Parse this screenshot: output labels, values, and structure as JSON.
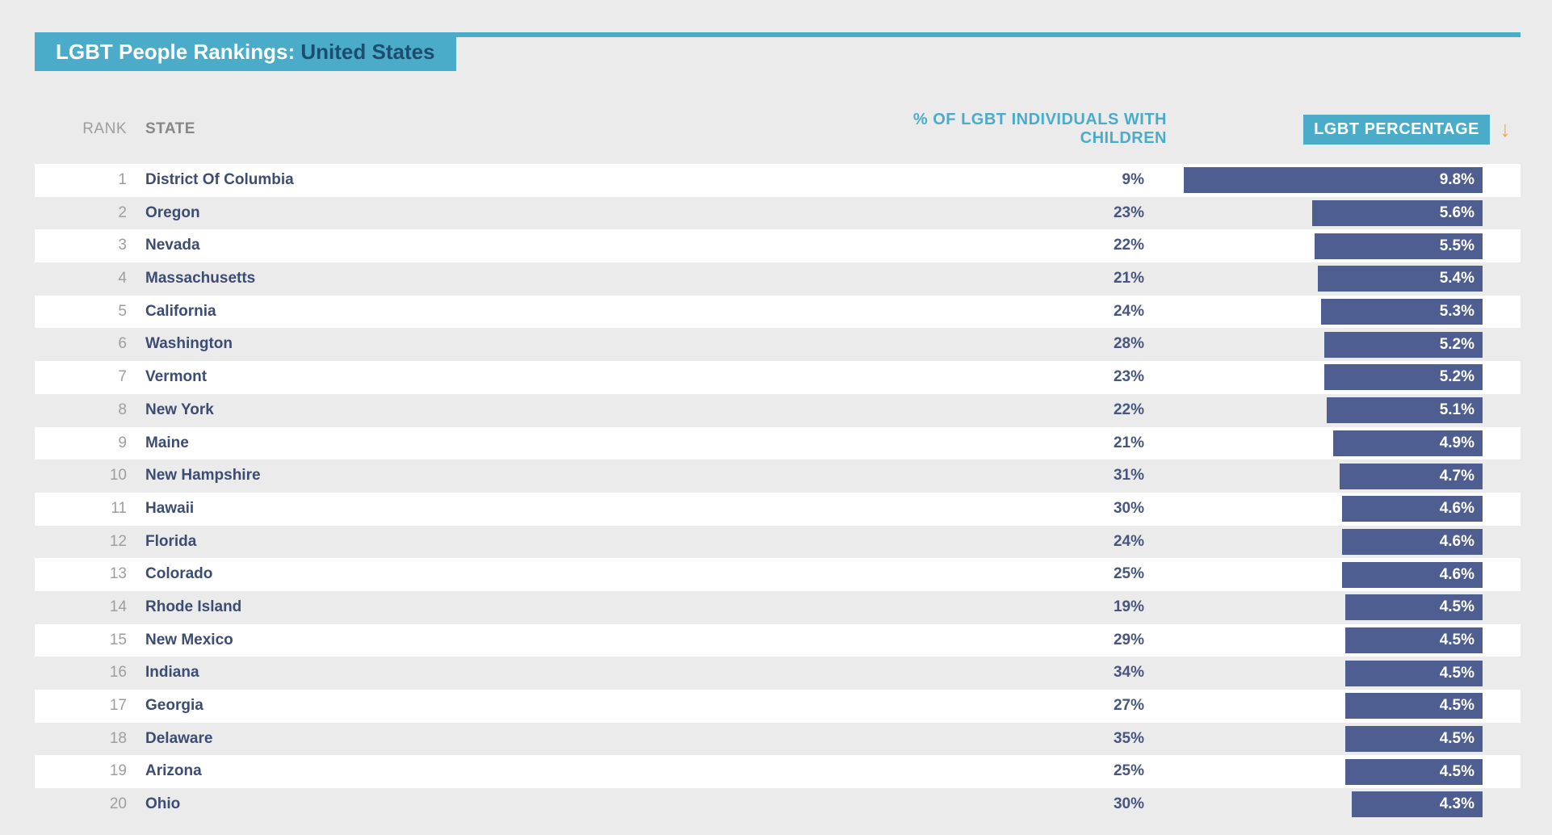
{
  "page": {
    "title_prefix": "LGBT People Rankings: ",
    "title_highlight": "United States"
  },
  "header": {
    "rank": "RANK",
    "state": "STATE",
    "children": "% OF LGBT INDIVIDUALS WITH CHILDREN",
    "percentage": "LGBT PERCENTAGE",
    "sort_icon": "↓"
  },
  "colors": {
    "accent_teal": "#4bacc9",
    "bar_navy": "#4e5e91",
    "state_text": "#3c4c72",
    "value_text": "#47567e",
    "muted_gray": "#9e9e9e",
    "header_gray": "#878787",
    "title_highlight_navy": "#1d4d6e",
    "sort_arrow_orange": "#efa851",
    "page_bg": "#ebebeb",
    "row_white": "#ffffff"
  },
  "chart_data": {
    "type": "bar",
    "title": "LGBT People Rankings: United States",
    "columns": [
      "RANK",
      "STATE",
      "% OF LGBT INDIVIDUALS WITH CHILDREN",
      "LGBT PERCENTAGE"
    ],
    "sorted_by": "LGBT PERCENTAGE",
    "sort_direction": "descending",
    "bar_scale_max": 9.8,
    "rows": [
      {
        "rank": "1",
        "state": "District Of Columbia",
        "children_pct": "9%",
        "lgbt_pct": "9.8%",
        "lgbt_value": 9.8
      },
      {
        "rank": "2",
        "state": "Oregon",
        "children_pct": "23%",
        "lgbt_pct": "5.6%",
        "lgbt_value": 5.6
      },
      {
        "rank": "3",
        "state": "Nevada",
        "children_pct": "22%",
        "lgbt_pct": "5.5%",
        "lgbt_value": 5.5
      },
      {
        "rank": "4",
        "state": "Massachusetts",
        "children_pct": "21%",
        "lgbt_pct": "5.4%",
        "lgbt_value": 5.4
      },
      {
        "rank": "5",
        "state": "California",
        "children_pct": "24%",
        "lgbt_pct": "5.3%",
        "lgbt_value": 5.3
      },
      {
        "rank": "6",
        "state": "Washington",
        "children_pct": "28%",
        "lgbt_pct": "5.2%",
        "lgbt_value": 5.2
      },
      {
        "rank": "7",
        "state": "Vermont",
        "children_pct": "23%",
        "lgbt_pct": "5.2%",
        "lgbt_value": 5.2
      },
      {
        "rank": "8",
        "state": "New York",
        "children_pct": "22%",
        "lgbt_pct": "5.1%",
        "lgbt_value": 5.1
      },
      {
        "rank": "9",
        "state": "Maine",
        "children_pct": "21%",
        "lgbt_pct": "4.9%",
        "lgbt_value": 4.9
      },
      {
        "rank": "10",
        "state": "New Hampshire",
        "children_pct": "31%",
        "lgbt_pct": "4.7%",
        "lgbt_value": 4.7
      },
      {
        "rank": "11",
        "state": "Hawaii",
        "children_pct": "30%",
        "lgbt_pct": "4.6%",
        "lgbt_value": 4.6
      },
      {
        "rank": "12",
        "state": "Florida",
        "children_pct": "24%",
        "lgbt_pct": "4.6%",
        "lgbt_value": 4.6
      },
      {
        "rank": "13",
        "state": "Colorado",
        "children_pct": "25%",
        "lgbt_pct": "4.6%",
        "lgbt_value": 4.6
      },
      {
        "rank": "14",
        "state": "Rhode Island",
        "children_pct": "19%",
        "lgbt_pct": "4.5%",
        "lgbt_value": 4.5
      },
      {
        "rank": "15",
        "state": "New Mexico",
        "children_pct": "29%",
        "lgbt_pct": "4.5%",
        "lgbt_value": 4.5
      },
      {
        "rank": "16",
        "state": "Indiana",
        "children_pct": "34%",
        "lgbt_pct": "4.5%",
        "lgbt_value": 4.5
      },
      {
        "rank": "17",
        "state": "Georgia",
        "children_pct": "27%",
        "lgbt_pct": "4.5%",
        "lgbt_value": 4.5
      },
      {
        "rank": "18",
        "state": "Delaware",
        "children_pct": "35%",
        "lgbt_pct": "4.5%",
        "lgbt_value": 4.5
      },
      {
        "rank": "19",
        "state": "Arizona",
        "children_pct": "25%",
        "lgbt_pct": "4.5%",
        "lgbt_value": 4.5
      },
      {
        "rank": "20",
        "state": "Ohio",
        "children_pct": "30%",
        "lgbt_pct": "4.3%",
        "lgbt_value": 4.3
      }
    ]
  }
}
